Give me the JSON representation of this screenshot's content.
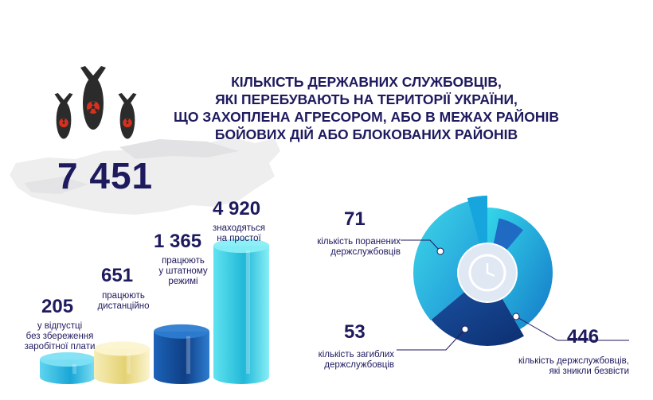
{
  "title_lines": [
    "КІЛЬКІСТЬ ДЕРЖАВНИХ СЛУЖБОВЦІВ,",
    "ЯКІ ПЕРЕБУВАЮТЬ НА ТЕРИТОРІЇ УКРАЇНИ,",
    "ЩО ЗАХОПЛЕНА АГРЕСОРОМ, АБО В МЕЖАХ РАЙОНІВ",
    "БОЙОВИХ ДІЙ АБО БЛОКОВАНИХ РАЙОНІВ"
  ],
  "total": "7 451",
  "colors": {
    "navy": "#1e1a5e",
    "cyan": "#25c6e0",
    "blue": "#1a5fb0",
    "dark_blue": "#0f3f86",
    "yellow": "#f3e79a",
    "bomb": "#2b2b2b",
    "radiation": "#d4311e"
  },
  "icons": [
    "bomb-icon",
    "radiation-symbol-icon",
    "clock-icon"
  ],
  "chart_data": [
    {
      "type": "bar",
      "categories": [
        "у відпустці без збереження заробітної плати",
        "працюють дистанційно",
        "працюють у штатному режимі",
        "знаходяться на простої"
      ],
      "values": [
        205,
        651,
        1365,
        4920
      ],
      "value_labels": [
        "205",
        "651",
        "1 365",
        "4 920"
      ],
      "label_lines": [
        [
          "у відпустці",
          "без збереження",
          "заробітної плати"
        ],
        [
          "працюють",
          "дистанційно"
        ],
        [
          "працюють",
          "у штатному",
          "режимі"
        ],
        [
          "знаходяться",
          "на простої"
        ]
      ]
    },
    {
      "type": "pie",
      "categories": [
        "кількість поранених держслужбовців",
        "кількість загиблих держслужбовців",
        "кількість держслужбовців, які зникли безвісти"
      ],
      "values": [
        71,
        53,
        446
      ],
      "value_labels": [
        "71",
        "53",
        "446"
      ],
      "label_lines": [
        [
          "кількість поранених",
          "держслужбовців"
        ],
        [
          "кількість загиблих",
          "держслужбовців"
        ],
        [
          "кількість держслужбовців,",
          "які зникли безвісти"
        ]
      ]
    }
  ]
}
